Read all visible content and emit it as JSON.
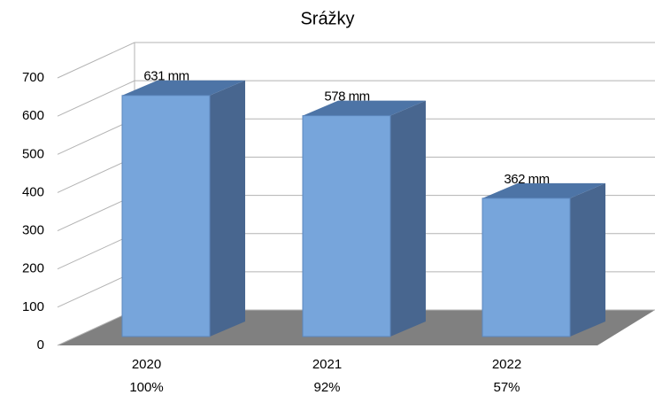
{
  "chart_data": {
    "type": "bar3d",
    "title": "Srážky",
    "categories": [
      "2020",
      "2021",
      "2022"
    ],
    "category_sublabels": [
      "100%",
      "92%",
      "57%"
    ],
    "values": [
      631,
      578,
      362
    ],
    "value_labels": [
      "631 mm",
      "578 mm",
      "362 mm"
    ],
    "color": "#77a5db",
    "ylim": [
      0,
      700
    ],
    "yticks": [
      0,
      100,
      200,
      300,
      400,
      500,
      600,
      700
    ],
    "grid": true
  }
}
